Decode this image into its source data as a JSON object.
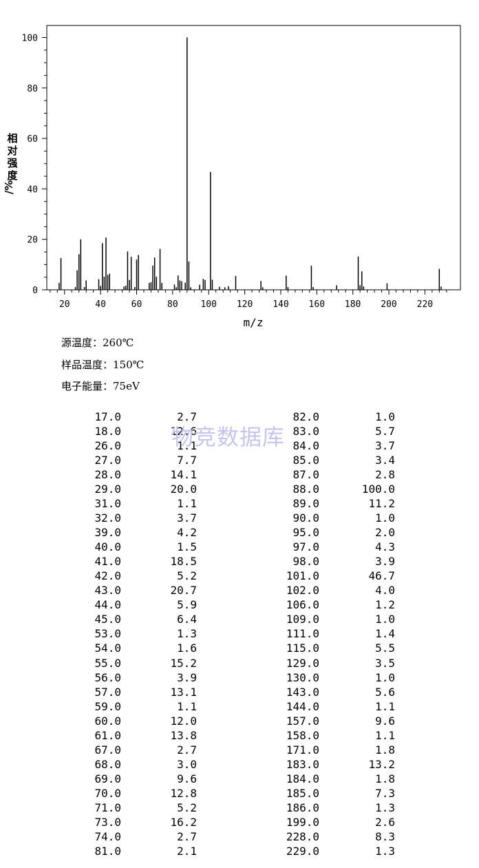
{
  "chart_data": {
    "type": "bar",
    "xlabel": "m/z",
    "ylabel": "相对强度/%",
    "xlim": [
      10,
      235
    ],
    "ylim": [
      0,
      105
    ],
    "x_ticks": [
      20,
      40,
      60,
      80,
      100,
      120,
      140,
      160,
      180,
      200,
      220
    ],
    "y_ticks": [
      0,
      20,
      40,
      60,
      80,
      100
    ],
    "grid": false,
    "peaks": [
      {
        "mz": 17.0,
        "intensity": 2.7
      },
      {
        "mz": 18.0,
        "intensity": 12.6
      },
      {
        "mz": 26.0,
        "intensity": 1.1
      },
      {
        "mz": 27.0,
        "intensity": 7.7
      },
      {
        "mz": 28.0,
        "intensity": 14.1
      },
      {
        "mz": 29.0,
        "intensity": 20.0
      },
      {
        "mz": 31.0,
        "intensity": 1.1
      },
      {
        "mz": 32.0,
        "intensity": 3.7
      },
      {
        "mz": 39.0,
        "intensity": 4.2
      },
      {
        "mz": 40.0,
        "intensity": 1.5
      },
      {
        "mz": 41.0,
        "intensity": 18.5
      },
      {
        "mz": 42.0,
        "intensity": 5.2
      },
      {
        "mz": 43.0,
        "intensity": 20.7
      },
      {
        "mz": 44.0,
        "intensity": 5.9
      },
      {
        "mz": 45.0,
        "intensity": 6.4
      },
      {
        "mz": 53.0,
        "intensity": 1.3
      },
      {
        "mz": 54.0,
        "intensity": 1.6
      },
      {
        "mz": 55.0,
        "intensity": 15.2
      },
      {
        "mz": 56.0,
        "intensity": 3.9
      },
      {
        "mz": 57.0,
        "intensity": 13.1
      },
      {
        "mz": 59.0,
        "intensity": 1.1
      },
      {
        "mz": 60.0,
        "intensity": 12.0
      },
      {
        "mz": 61.0,
        "intensity": 13.8
      },
      {
        "mz": 67.0,
        "intensity": 2.7
      },
      {
        "mz": 68.0,
        "intensity": 3.0
      },
      {
        "mz": 69.0,
        "intensity": 9.6
      },
      {
        "mz": 70.0,
        "intensity": 12.8
      },
      {
        "mz": 71.0,
        "intensity": 5.2
      },
      {
        "mz": 73.0,
        "intensity": 16.2
      },
      {
        "mz": 74.0,
        "intensity": 2.7
      },
      {
        "mz": 81.0,
        "intensity": 2.1
      },
      {
        "mz": 82.0,
        "intensity": 1.0
      },
      {
        "mz": 83.0,
        "intensity": 5.7
      },
      {
        "mz": 84.0,
        "intensity": 3.7
      },
      {
        "mz": 85.0,
        "intensity": 3.4
      },
      {
        "mz": 87.0,
        "intensity": 2.8
      },
      {
        "mz": 88.0,
        "intensity": 100.0
      },
      {
        "mz": 89.0,
        "intensity": 11.2
      },
      {
        "mz": 90.0,
        "intensity": 1.0
      },
      {
        "mz": 95.0,
        "intensity": 2.0
      },
      {
        "mz": 97.0,
        "intensity": 4.3
      },
      {
        "mz": 98.0,
        "intensity": 3.9
      },
      {
        "mz": 101.0,
        "intensity": 46.7
      },
      {
        "mz": 102.0,
        "intensity": 4.0
      },
      {
        "mz": 106.0,
        "intensity": 1.2
      },
      {
        "mz": 109.0,
        "intensity": 1.0
      },
      {
        "mz": 111.0,
        "intensity": 1.4
      },
      {
        "mz": 115.0,
        "intensity": 5.5
      },
      {
        "mz": 129.0,
        "intensity": 3.5
      },
      {
        "mz": 130.0,
        "intensity": 1.0
      },
      {
        "mz": 143.0,
        "intensity": 5.6
      },
      {
        "mz": 144.0,
        "intensity": 1.1
      },
      {
        "mz": 157.0,
        "intensity": 9.6
      },
      {
        "mz": 158.0,
        "intensity": 1.1
      },
      {
        "mz": 171.0,
        "intensity": 1.8
      },
      {
        "mz": 183.0,
        "intensity": 13.2
      },
      {
        "mz": 184.0,
        "intensity": 1.8
      },
      {
        "mz": 185.0,
        "intensity": 7.3
      },
      {
        "mz": 186.0,
        "intensity": 1.3
      },
      {
        "mz": 199.0,
        "intensity": 2.6
      },
      {
        "mz": 228.0,
        "intensity": 8.3
      },
      {
        "mz": 229.0,
        "intensity": 1.3
      }
    ]
  },
  "conditions": {
    "source_temp": "源温度：260℃",
    "sample_temp": "样品温度：150℃",
    "electron_energy": "电子能量：75eV"
  },
  "table": {
    "left": [
      [
        "17.0",
        "2.7"
      ],
      [
        "18.0",
        "12.6"
      ],
      [
        "26.0",
        "1.1"
      ],
      [
        "27.0",
        "7.7"
      ],
      [
        "28.0",
        "14.1"
      ],
      [
        "29.0",
        "20.0"
      ],
      [
        "31.0",
        "1.1"
      ],
      [
        "32.0",
        "3.7"
      ],
      [
        "39.0",
        "4.2"
      ],
      [
        "40.0",
        "1.5"
      ],
      [
        "41.0",
        "18.5"
      ],
      [
        "42.0",
        "5.2"
      ],
      [
        "43.0",
        "20.7"
      ],
      [
        "44.0",
        "5.9"
      ],
      [
        "45.0",
        "6.4"
      ],
      [
        "53.0",
        "1.3"
      ],
      [
        "54.0",
        "1.6"
      ],
      [
        "55.0",
        "15.2"
      ],
      [
        "56.0",
        "3.9"
      ],
      [
        "57.0",
        "13.1"
      ],
      [
        "59.0",
        "1.1"
      ],
      [
        "60.0",
        "12.0"
      ],
      [
        "61.0",
        "13.8"
      ],
      [
        "67.0",
        "2.7"
      ],
      [
        "68.0",
        "3.0"
      ],
      [
        "69.0",
        "9.6"
      ],
      [
        "70.0",
        "12.8"
      ],
      [
        "71.0",
        "5.2"
      ],
      [
        "73.0",
        "16.2"
      ],
      [
        "74.0",
        "2.7"
      ],
      [
        "81.0",
        "2.1"
      ]
    ],
    "right": [
      [
        "82.0",
        "1.0"
      ],
      [
        "83.0",
        "5.7"
      ],
      [
        "84.0",
        "3.7"
      ],
      [
        "85.0",
        "3.4"
      ],
      [
        "87.0",
        "2.8"
      ],
      [
        "88.0",
        "100.0"
      ],
      [
        "89.0",
        "11.2"
      ],
      [
        "90.0",
        "1.0"
      ],
      [
        "95.0",
        "2.0"
      ],
      [
        "97.0",
        "4.3"
      ],
      [
        "98.0",
        "3.9"
      ],
      [
        "101.0",
        "46.7"
      ],
      [
        "102.0",
        "4.0"
      ],
      [
        "106.0",
        "1.2"
      ],
      [
        "109.0",
        "1.0"
      ],
      [
        "111.0",
        "1.4"
      ],
      [
        "115.0",
        "5.5"
      ],
      [
        "129.0",
        "3.5"
      ],
      [
        "130.0",
        "1.0"
      ],
      [
        "143.0",
        "5.6"
      ],
      [
        "144.0",
        "1.1"
      ],
      [
        "157.0",
        "9.6"
      ],
      [
        "158.0",
        "1.1"
      ],
      [
        "171.0",
        "1.8"
      ],
      [
        "183.0",
        "13.2"
      ],
      [
        "184.0",
        "1.8"
      ],
      [
        "185.0",
        "7.3"
      ],
      [
        "186.0",
        "1.3"
      ],
      [
        "199.0",
        "2.6"
      ],
      [
        "228.0",
        "8.3"
      ],
      [
        "229.0",
        "1.3"
      ]
    ]
  },
  "watermark": "物竞数据库"
}
